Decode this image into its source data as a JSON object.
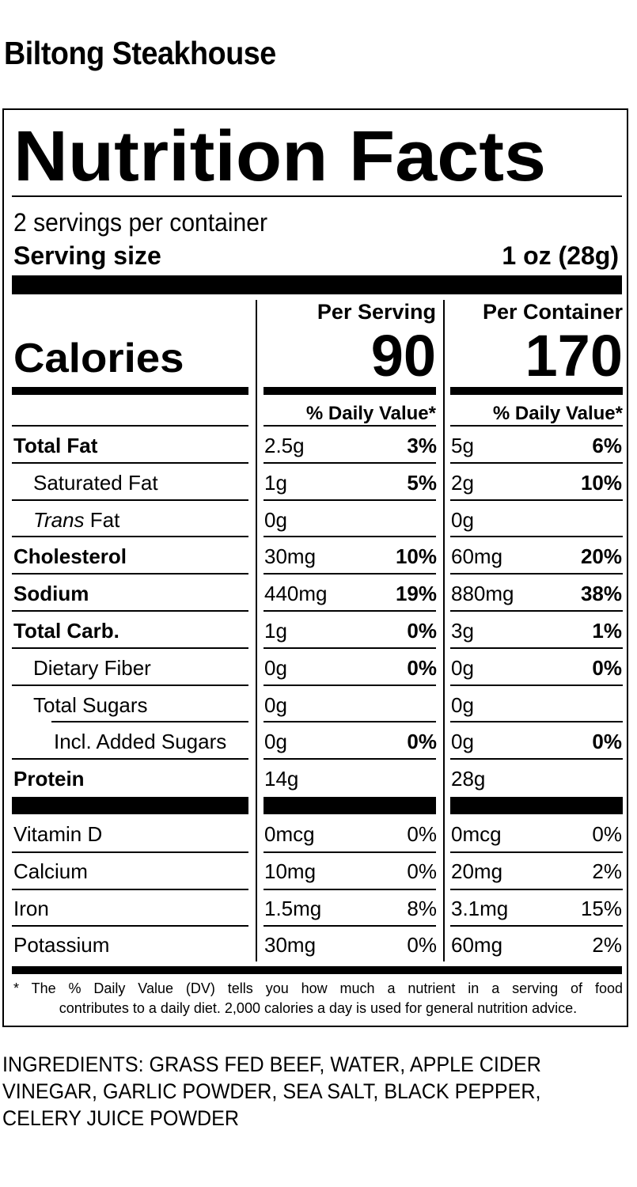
{
  "brand": "Biltong Steakhouse",
  "label": {
    "title": "Nutrition Facts",
    "servings_per_container": "2 servings per container",
    "serving_size_label": "Serving size",
    "serving_size_value": "1 oz (28g)",
    "calories_label": "Calories",
    "columns": [
      {
        "header": "Per Serving",
        "calories": "90",
        "dv_header": "% Daily Value*"
      },
      {
        "header": "Per Container",
        "calories": "170",
        "dv_header": "% Daily Value*"
      }
    ],
    "nutrients": [
      {
        "name": "Total Fat",
        "style": "bold",
        "per_serving": {
          "amount": "2.5g",
          "dv": "3%"
        },
        "per_container": {
          "amount": "5g",
          "dv": "6%"
        }
      },
      {
        "name": "Saturated Fat",
        "style": "indent1",
        "per_serving": {
          "amount": "1g",
          "dv": "5%"
        },
        "per_container": {
          "amount": "2g",
          "dv": "10%"
        }
      },
      {
        "name_italic": "Trans",
        "name": " Fat",
        "style": "indent1",
        "per_serving": {
          "amount": "0g",
          "dv": ""
        },
        "per_container": {
          "amount": "0g",
          "dv": ""
        }
      },
      {
        "name": "Cholesterol",
        "style": "bold",
        "per_serving": {
          "amount": "30mg",
          "dv": "10%"
        },
        "per_container": {
          "amount": "60mg",
          "dv": "20%"
        }
      },
      {
        "name": "Sodium",
        "style": "bold",
        "per_serving": {
          "amount": "440mg",
          "dv": "19%"
        },
        "per_container": {
          "amount": "880mg",
          "dv": "38%"
        }
      },
      {
        "name": "Total Carb.",
        "style": "bold",
        "per_serving": {
          "amount": "1g",
          "dv": "0%"
        },
        "per_container": {
          "amount": "3g",
          "dv": "1%"
        }
      },
      {
        "name": "Dietary Fiber",
        "style": "indent1",
        "per_serving": {
          "amount": "0g",
          "dv": "0%"
        },
        "per_container": {
          "amount": "0g",
          "dv": "0%"
        }
      },
      {
        "name": "Total Sugars",
        "style": "indent1",
        "per_serving": {
          "amount": "0g",
          "dv": ""
        },
        "per_container": {
          "amount": "0g",
          "dv": ""
        }
      },
      {
        "name": "Incl. Added Sugars",
        "style": "indent2",
        "per_serving": {
          "amount": "0g",
          "dv": "0%"
        },
        "per_container": {
          "amount": "0g",
          "dv": "0%"
        }
      },
      {
        "name": "Protein",
        "style": "bold",
        "per_serving": {
          "amount": "14g",
          "dv": ""
        },
        "per_container": {
          "amount": "28g",
          "dv": ""
        }
      }
    ],
    "vitamins": [
      {
        "name": "Vitamin D",
        "per_serving": {
          "amount": "0mcg",
          "dv": "0%"
        },
        "per_container": {
          "amount": "0mcg",
          "dv": "0%"
        }
      },
      {
        "name": "Calcium",
        "per_serving": {
          "amount": "10mg",
          "dv": "0%"
        },
        "per_container": {
          "amount": "20mg",
          "dv": "2%"
        }
      },
      {
        "name": "Iron",
        "per_serving": {
          "amount": "1.5mg",
          "dv": "8%"
        },
        "per_container": {
          "amount": "3.1mg",
          "dv": "15%"
        }
      },
      {
        "name": "Potassium",
        "per_serving": {
          "amount": "30mg",
          "dv": "0%"
        },
        "per_container": {
          "amount": "60mg",
          "dv": "2%"
        }
      }
    ],
    "footnote_line1": "* The % Daily Value (DV) tells you how much a nutrient in a serving of food",
    "footnote_line2": "contributes to a daily diet. 2,000 calories a day is used for general nutrition advice."
  },
  "ingredients": "INGREDIENTS: GRASS FED BEEF, WATER, APPLE CIDER VINEGAR, GARLIC POWDER, SEA SALT, BLACK PEPPER, CELERY JUICE POWDER"
}
